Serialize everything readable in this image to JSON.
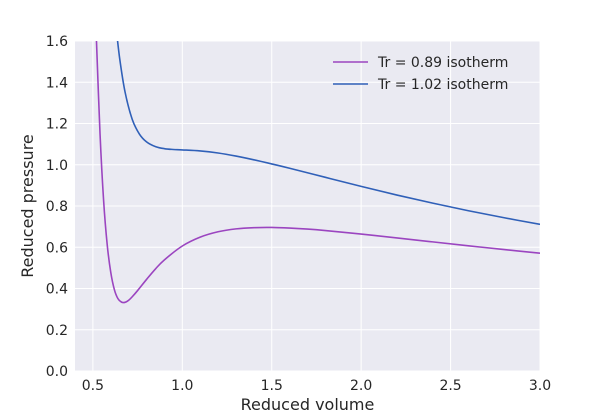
{
  "chart_data": {
    "type": "line",
    "title": "",
    "xlabel": "Reduced volume",
    "ylabel": "Reduced pressure",
    "xlim": [
      0.4,
      3.0
    ],
    "ylim": [
      0.0,
      1.6
    ],
    "x_ticks": [
      "0.5",
      "1.0",
      "1.5",
      "2.0",
      "2.5",
      "3.0"
    ],
    "y_ticks": [
      "0.0",
      "0.2",
      "0.4",
      "0.6",
      "0.8",
      "1.0",
      "1.2",
      "1.4",
      "1.6"
    ],
    "grid": true,
    "legend_position": "top-right",
    "background_color": "#eaeaf2",
    "series": [
      {
        "name": "Tr = 0.89 isotherm",
        "color": "#9b45c0",
        "x": [
          0.52,
          0.54,
          0.56,
          0.58,
          0.6,
          0.62,
          0.64,
          0.66,
          0.68,
          0.7,
          0.72,
          0.75,
          0.8,
          0.85,
          0.9,
          1.0,
          1.1,
          1.2,
          1.3,
          1.4,
          1.5,
          1.6,
          1.7,
          1.8,
          2.0,
          2.2,
          2.4,
          2.6,
          2.8,
          3.0
        ],
        "y": [
          1.601,
          1.149,
          0.826,
          0.613,
          0.478,
          0.395,
          0.351,
          0.334,
          0.333,
          0.343,
          0.36,
          0.39,
          0.444,
          0.495,
          0.539,
          0.606,
          0.649,
          0.675,
          0.689,
          0.695,
          0.696,
          0.693,
          0.688,
          0.681,
          0.664,
          0.645,
          0.626,
          0.607,
          0.589,
          0.571
        ]
      },
      {
        "name": "Tr = 1.02 isotherm",
        "color": "#3060b8",
        "x": [
          0.63,
          0.65,
          0.68,
          0.72,
          0.76,
          0.8,
          0.85,
          0.9,
          0.95,
          1.0,
          1.1,
          1.2,
          1.3,
          1.4,
          1.5,
          1.6,
          1.8,
          2.0,
          2.2,
          2.4,
          2.6,
          2.8,
          3.0
        ],
        "y": [
          1.664,
          1.514,
          1.352,
          1.22,
          1.149,
          1.111,
          1.088,
          1.078,
          1.074,
          1.072,
          1.067,
          1.057,
          1.042,
          1.024,
          1.004,
          0.983,
          0.939,
          0.895,
          0.853,
          0.814,
          0.777,
          0.743,
          0.711
        ]
      }
    ]
  }
}
